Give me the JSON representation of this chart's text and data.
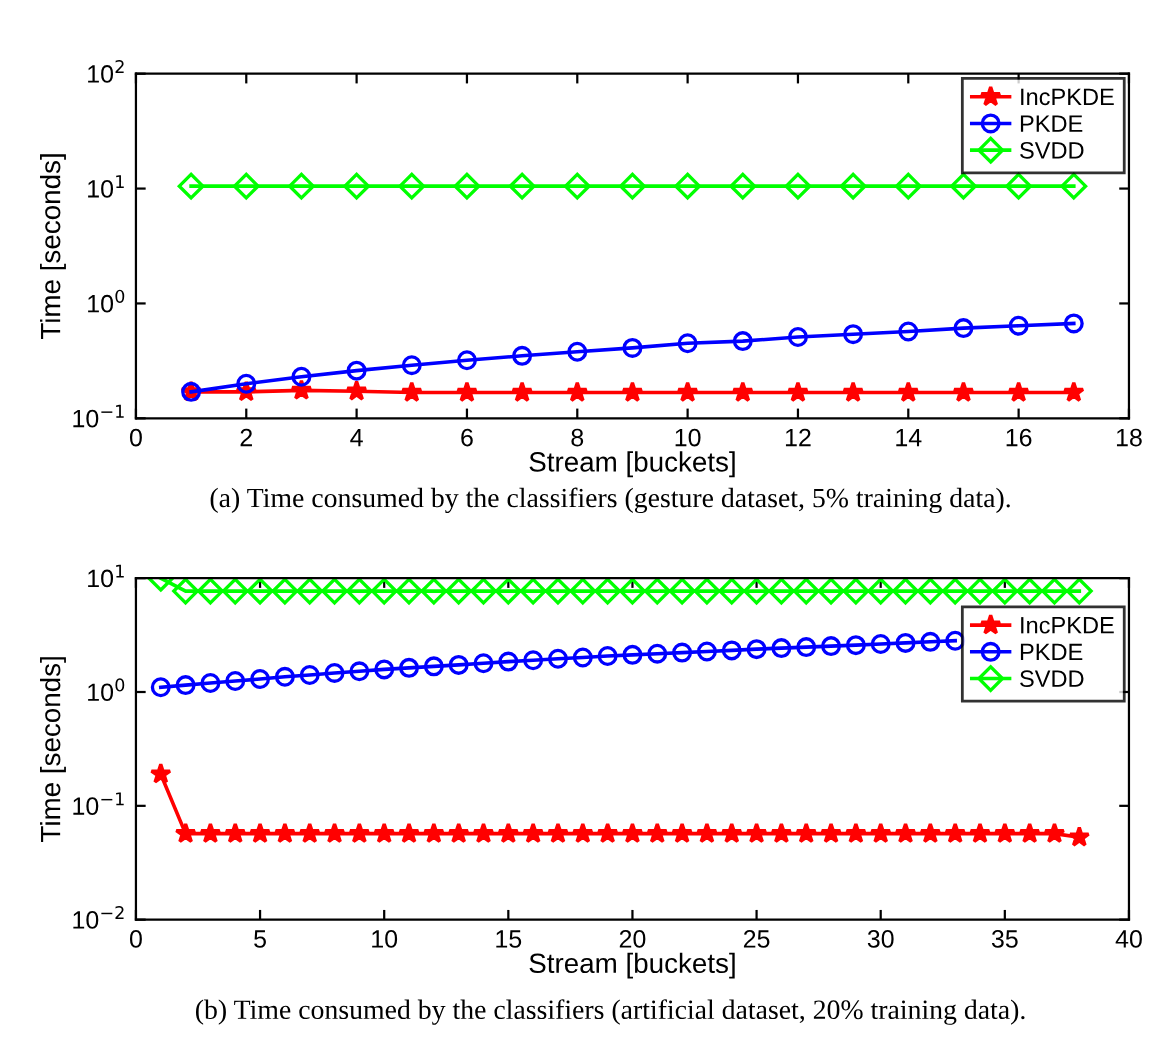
{
  "chart_data": [
    {
      "type": "line",
      "xlabel": "Stream [buckets]",
      "ylabel": "Time [seconds]",
      "log": "y",
      "x": [
        1,
        2,
        3,
        4,
        5,
        6,
        7,
        8,
        9,
        10,
        11,
        12,
        13,
        14,
        15,
        16,
        17
      ],
      "xlim": [
        0,
        18
      ],
      "xticks": [
        0,
        2,
        4,
        6,
        8,
        10,
        12,
        14,
        16,
        18
      ],
      "ylim": [
        0.1,
        100
      ],
      "yticks": [
        {
          "value": 0.1,
          "label": "10$^{−1}$"
        },
        {
          "value": 1,
          "label": "10$^{0}$"
        },
        {
          "value": 10,
          "label": "10$^{1}$"
        },
        {
          "value": 100,
          "label": "10$^{2}$"
        }
      ],
      "grid": false,
      "legend": "top right",
      "line_style": "solid",
      "annotations": [
        "(a) Time consumed by the classifiers (gesture dataset, 5% training data)."
      ],
      "series": [
        {
          "name": "IncPKDE",
          "color": "#ff0000",
          "marker": "star",
          "values": [
            0.17,
            0.17,
            0.175,
            0.172,
            0.168,
            0.168,
            0.168,
            0.168,
            0.168,
            0.168,
            0.168,
            0.168,
            0.168,
            0.168,
            0.168,
            0.168,
            0.168
          ]
        },
        {
          "name": "PKDE",
          "color": "#0000ff",
          "marker": "circle",
          "values": [
            0.17,
            0.2,
            0.23,
            0.26,
            0.29,
            0.32,
            0.35,
            0.38,
            0.41,
            0.45,
            0.47,
            0.51,
            0.54,
            0.57,
            0.61,
            0.64,
            0.67
          ]
        },
        {
          "name": "SVDD",
          "color": "#00ff00",
          "marker": "diamond",
          "values": [
            10.5,
            10.5,
            10.5,
            10.5,
            10.5,
            10.5,
            10.5,
            10.5,
            10.5,
            10.5,
            10.5,
            10.5,
            10.5,
            10.5,
            10.5,
            10.5,
            10.5
          ]
        }
      ]
    },
    {
      "type": "line",
      "xlabel": "Stream [buckets]",
      "ylabel": "Time [seconds]",
      "log": "y",
      "x": [
        1,
        2,
        3,
        4,
        5,
        6,
        7,
        8,
        9,
        10,
        11,
        12,
        13,
        14,
        15,
        16,
        17,
        18,
        19,
        20,
        21,
        22,
        23,
        24,
        25,
        26,
        27,
        28,
        29,
        30,
        31,
        32,
        33,
        34,
        35,
        36,
        37,
        38
      ],
      "xlim": [
        0,
        40
      ],
      "xticks": [
        0,
        5,
        10,
        15,
        20,
        25,
        30,
        35,
        40
      ],
      "ylim": [
        0.01,
        10
      ],
      "yticks": [
        {
          "value": 0.01,
          "label": "10$^{−2}$"
        },
        {
          "value": 0.1,
          "label": "10$^{−1}$"
        },
        {
          "value": 1,
          "label": "10$^{0}$"
        },
        {
          "value": 10,
          "label": "10$^{1}$"
        }
      ],
      "grid": false,
      "legend": "top right",
      "line_style": "solid",
      "annotations": [
        "(b) Time consumed by the classifiers (artificial dataset, 20% training data)."
      ],
      "series": [
        {
          "name": "IncPKDE",
          "color": "#ff0000",
          "marker": "star",
          "values": [
            0.19,
            0.057,
            0.057,
            0.057,
            0.057,
            0.057,
            0.057,
            0.057,
            0.057,
            0.057,
            0.057,
            0.057,
            0.057,
            0.057,
            0.057,
            0.057,
            0.057,
            0.057,
            0.057,
            0.057,
            0.057,
            0.057,
            0.057,
            0.057,
            0.057,
            0.057,
            0.057,
            0.057,
            0.057,
            0.057,
            0.057,
            0.057,
            0.057,
            0.057,
            0.057,
            0.057,
            0.057,
            0.053
          ]
        },
        {
          "name": "PKDE",
          "color": "#0000ff",
          "marker": "circle",
          "values": [
            1.1,
            1.15,
            1.2,
            1.25,
            1.3,
            1.36,
            1.41,
            1.47,
            1.52,
            1.58,
            1.63,
            1.68,
            1.73,
            1.79,
            1.85,
            1.9,
            1.96,
            2.01,
            2.07,
            2.12,
            2.17,
            2.22,
            2.27,
            2.32,
            2.38,
            2.43,
            2.48,
            2.53,
            2.58,
            2.64,
            2.7,
            2.76,
            2.82,
            null,
            null,
            null,
            null,
            null
          ]
        },
        {
          "name": "SVDD",
          "color": "#00ff00",
          "marker": "diamond",
          "values": [
            10,
            7.7,
            7.7,
            7.7,
            7.7,
            7.7,
            7.7,
            7.7,
            7.7,
            7.7,
            7.7,
            7.7,
            7.7,
            7.7,
            7.7,
            7.7,
            7.7,
            7.7,
            7.7,
            7.7,
            7.7,
            7.7,
            7.7,
            7.7,
            7.7,
            7.7,
            7.7,
            7.7,
            7.7,
            7.7,
            7.7,
            7.7,
            7.7,
            7.7,
            7.7,
            7.7,
            7.7,
            7.7
          ]
        }
      ]
    }
  ]
}
